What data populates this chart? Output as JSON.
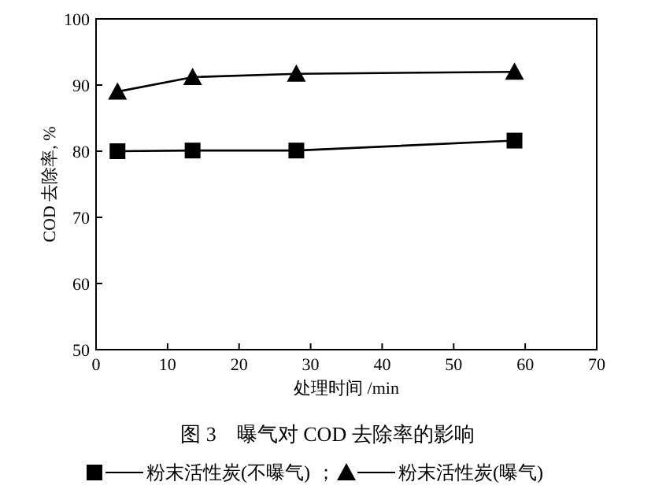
{
  "chart_data": {
    "type": "line",
    "title": "图 3　曝气对 COD 去除率的影响",
    "xlabel": "处理时间 /min",
    "ylabel": "COD 去除率, %",
    "xlim": [
      0,
      70
    ],
    "xticks": [
      0,
      10,
      20,
      30,
      40,
      50,
      60,
      70
    ],
    "ylim": [
      50,
      100
    ],
    "yticks": [
      50,
      60,
      70,
      80,
      90,
      100
    ],
    "legend": "bottom",
    "annotations": [
      "；"
    ],
    "series": [
      {
        "name": "粉末活性炭(不曝气)",
        "color": "#000000",
        "marker": "square",
        "x": [
          3,
          13.5,
          28,
          58.5
        ],
        "values": [
          80,
          80.1,
          80.1,
          81.6
        ]
      },
      {
        "name": "粉末活性炭(曝气)",
        "color": "#000000",
        "marker": "triangle",
        "x": [
          3,
          13.5,
          28,
          58.5
        ],
        "values": [
          89,
          91.2,
          91.7,
          92
        ]
      }
    ]
  }
}
